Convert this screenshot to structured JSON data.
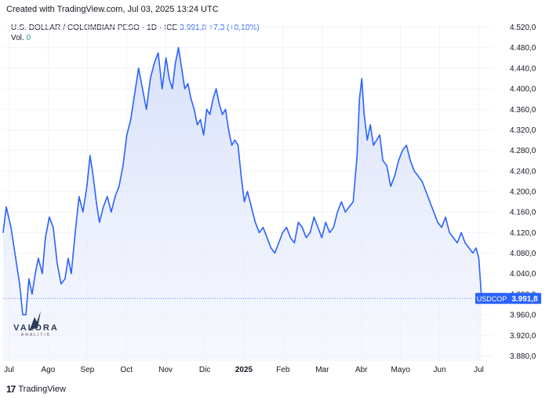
{
  "header": {
    "attribution": "Created with TradingView.com, Jul 03, 2025 13:24 UTC"
  },
  "legend": {
    "symbol_desc": "U.S. DOLLAR / COLOMBIAN PESO · 1D · ICE",
    "last_value": "3.991,8",
    "change": "+7,3 (+0,18%)",
    "vol_label": "Vol.",
    "vol_value": "0"
  },
  "footer": {
    "logo_mark": "17",
    "brand": "TradingView"
  },
  "watermark": {
    "brand": "VALORA",
    "sub": "ANALITIK"
  },
  "colors": {
    "line": "#2962ff",
    "fill_top": "#dbe3fb",
    "grid": "#f0f3fa",
    "text": "#131722"
  },
  "chart_data": {
    "type": "area",
    "title": "U.S. DOLLAR / COLOMBIAN PESO · 1D · ICE",
    "symbol": "USDCOP",
    "last_price": 3991.8,
    "last_price_label": "3.991,8",
    "ylim": [
      3870,
      4530
    ],
    "y_ticks": [
      3880,
      3920,
      3960,
      4000,
      4040,
      4080,
      4120,
      4160,
      4200,
      4240,
      4280,
      4320,
      4360,
      4400,
      4440,
      4480,
      4520
    ],
    "y_tick_labels": [
      "3.880,0",
      "3.920,0",
      "3.960,0",
      "4.000,0",
      "4.040,0",
      "4.080,0",
      "4.120,0",
      "4.160,0",
      "4.200,0",
      "4.240,0",
      "4.280,0",
      "4.320,0",
      "4.360,0",
      "4.400,0",
      "4.440,0",
      "4.480,0",
      "4.520,0"
    ],
    "xlim": [
      0,
      12.5
    ],
    "x_ticks": [
      {
        "t": 0.15,
        "label": "Jul"
      },
      {
        "t": 1.15,
        "label": "Ago"
      },
      {
        "t": 2.15,
        "label": "Sep"
      },
      {
        "t": 3.15,
        "label": "Oct"
      },
      {
        "t": 4.15,
        "label": "Nov"
      },
      {
        "t": 5.15,
        "label": "Dic"
      },
      {
        "t": 6.15,
        "label": "2025"
      },
      {
        "t": 7.15,
        "label": "Feb"
      },
      {
        "t": 8.15,
        "label": "Mar"
      },
      {
        "t": 9.15,
        "label": "Abr"
      },
      {
        "t": 10.15,
        "label": "Mayo"
      },
      {
        "t": 11.15,
        "label": "Jun"
      },
      {
        "t": 12.15,
        "label": "Jul"
      }
    ],
    "series": [
      {
        "name": "USDCOP",
        "t": [
          0,
          0.08,
          0.2,
          0.3,
          0.42,
          0.5,
          0.58,
          0.66,
          0.74,
          0.82,
          0.9,
          1.0,
          1.08,
          1.18,
          1.28,
          1.38,
          1.48,
          1.58,
          1.66,
          1.74,
          1.84,
          1.94,
          2.04,
          2.14,
          2.22,
          2.3,
          2.38,
          2.46,
          2.56,
          2.66,
          2.76,
          2.86,
          2.96,
          3.06,
          3.16,
          3.26,
          3.36,
          3.46,
          3.56,
          3.66,
          3.76,
          3.86,
          3.96,
          4.06,
          4.16,
          4.24,
          4.32,
          4.4,
          4.48,
          4.56,
          4.64,
          4.72,
          4.8,
          4.88,
          4.96,
          5.04,
          5.12,
          5.2,
          5.28,
          5.36,
          5.44,
          5.52,
          5.6,
          5.68,
          5.76,
          5.84,
          5.92,
          6.0,
          6.08,
          6.16,
          6.24,
          6.34,
          6.44,
          6.54,
          6.64,
          6.74,
          6.84,
          6.94,
          7.04,
          7.14,
          7.24,
          7.34,
          7.44,
          7.54,
          7.64,
          7.74,
          7.84,
          7.94,
          8.04,
          8.14,
          8.24,
          8.34,
          8.44,
          8.54,
          8.64,
          8.74,
          8.84,
          8.94,
          9.04,
          9.1,
          9.16,
          9.22,
          9.3,
          9.38,
          9.46,
          9.54,
          9.62,
          9.7,
          9.8,
          9.9,
          10.0,
          10.1,
          10.2,
          10.3,
          10.4,
          10.5,
          10.6,
          10.7,
          10.8,
          10.9,
          11.0,
          11.1,
          11.2,
          11.3,
          11.4,
          11.5,
          11.6,
          11.7,
          11.8,
          11.9,
          12.0,
          12.08,
          12.15,
          12.22
        ],
        "values": [
          4120,
          4170,
          4130,
          4080,
          4020,
          3960,
          3960,
          4030,
          4000,
          4040,
          4070,
          4040,
          4110,
          4150,
          4130,
          4060,
          4020,
          4030,
          4070,
          4040,
          4120,
          4190,
          4160,
          4210,
          4270,
          4230,
          4180,
          4140,
          4170,
          4190,
          4160,
          4190,
          4210,
          4250,
          4310,
          4340,
          4390,
          4440,
          4400,
          4360,
          4420,
          4450,
          4470,
          4400,
          4460,
          4420,
          4400,
          4450,
          4480,
          4440,
          4400,
          4410,
          4380,
          4360,
          4330,
          4340,
          4310,
          4360,
          4350,
          4380,
          4400,
          4370,
          4350,
          4360,
          4320,
          4290,
          4300,
          4290,
          4230,
          4180,
          4200,
          4170,
          4140,
          4120,
          4130,
          4110,
          4090,
          4080,
          4100,
          4120,
          4130,
          4110,
          4100,
          4140,
          4130,
          4110,
          4120,
          4150,
          4130,
          4110,
          4140,
          4120,
          4130,
          4160,
          4180,
          4160,
          4170,
          4180,
          4270,
          4380,
          4420,
          4350,
          4300,
          4330,
          4290,
          4300,
          4310,
          4260,
          4250,
          4210,
          4230,
          4260,
          4280,
          4290,
          4260,
          4240,
          4230,
          4220,
          4200,
          4180,
          4160,
          4140,
          4130,
          4150,
          4120,
          4110,
          4100,
          4120,
          4100,
          4090,
          4080,
          4090,
          4070,
          3992
        ]
      }
    ],
    "price_label_text": "USDCOP",
    "grid": true,
    "legend_position": "top-left"
  }
}
